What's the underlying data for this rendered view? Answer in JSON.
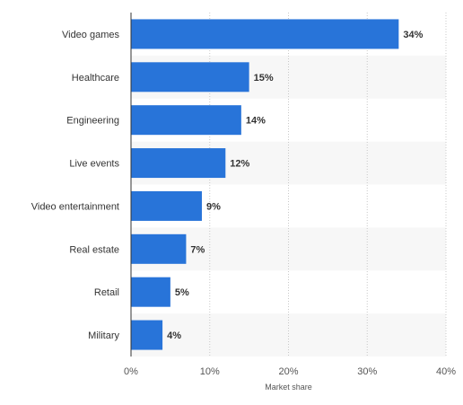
{
  "chart_data": {
    "type": "bar",
    "orientation": "horizontal",
    "categories": [
      "Video games",
      "Healthcare",
      "Engineering",
      "Live events",
      "Video entertainment",
      "Real estate",
      "Retail",
      "Military"
    ],
    "values": [
      34,
      15,
      14,
      12,
      9,
      7,
      5,
      4
    ],
    "value_labels": [
      "34%",
      "15%",
      "14%",
      "12%",
      "9%",
      "7%",
      "5%",
      "4%"
    ],
    "title": "",
    "xlabel": "Market share",
    "ylabel": "",
    "xlim": [
      0,
      40
    ],
    "x_ticks": [
      0,
      10,
      20,
      30,
      40
    ],
    "x_tick_labels": [
      "0%",
      "10%",
      "20%",
      "30%",
      "40%"
    ],
    "grid": true,
    "band_shading": true,
    "bar_color": "#2874d9"
  }
}
